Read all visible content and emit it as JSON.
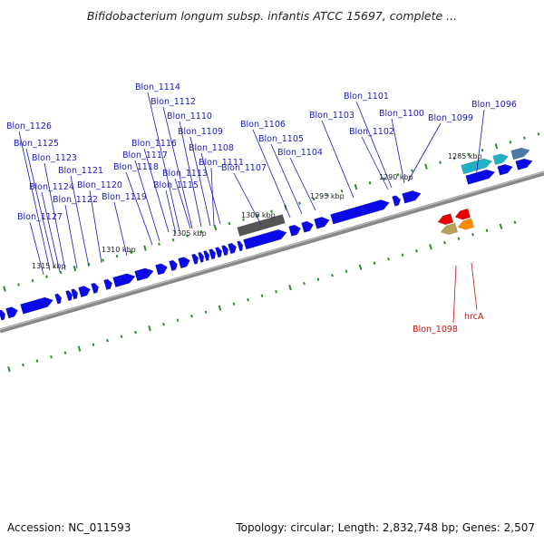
{
  "title": "Bifidobacterium longum subsp. infantis ATCC 15697, complete ...",
  "footer": {
    "accession": "Accession: NC_011593",
    "summary": "Topology: circular; Length: 2,832,748 bp; Genes: 2,507"
  },
  "colors": {
    "cds_forward": "#0a0ae6",
    "cds_reverse": "#0a0ae6",
    "rna_gray": "#555555",
    "label_blue": "#1a1ab8",
    "label_red": "#cc1111",
    "dots": "#2e8b2e",
    "backbone": "#888888",
    "teal": "#20b2c4",
    "steel": "#4a7ba7",
    "red": "#e60000",
    "khaki": "#b5a15a",
    "orange": "#ff8c00"
  },
  "ticks": [
    {
      "label": "1315 kbp"
    },
    {
      "label": "1310 kbp"
    },
    {
      "label": "1305 kbp"
    },
    {
      "label": "1300 kbp"
    },
    {
      "label": "1295 kbp"
    },
    {
      "label": "1290 kbp"
    },
    {
      "label": "1285 kbp"
    }
  ],
  "gene_labels": [
    {
      "name": "Blon_1114"
    },
    {
      "name": "Blon_1112"
    },
    {
      "name": "Blon_1110"
    },
    {
      "name": "Blon_1109"
    },
    {
      "name": "Blon_1116"
    },
    {
      "name": "Blon_1108"
    },
    {
      "name": "Blon_1117"
    },
    {
      "name": "Blon_1111"
    },
    {
      "name": "Blon_1118"
    },
    {
      "name": "Blon_1113"
    },
    {
      "name": "Blon_1115"
    },
    {
      "name": "Blon_1126"
    },
    {
      "name": "Blon_1125"
    },
    {
      "name": "Blon_1123"
    },
    {
      "name": "Blon_1121"
    },
    {
      "name": "Blon_1124"
    },
    {
      "name": "Blon_1120"
    },
    {
      "name": "Blon_1122"
    },
    {
      "name": "Blon_1119"
    },
    {
      "name": "Blon_1127"
    },
    {
      "name": "Blon_1106"
    },
    {
      "name": "Blon_1105"
    },
    {
      "name": "Blon_1104"
    },
    {
      "name": "Blon_1107"
    },
    {
      "name": "Blon_1103"
    },
    {
      "name": "Blon_1101"
    },
    {
      "name": "Blon_1100"
    },
    {
      "name": "Blon_1102"
    },
    {
      "name": "Blon_1099"
    },
    {
      "name": "Blon_1096"
    },
    {
      "name": "Blon_1098"
    },
    {
      "name": "hrcA"
    }
  ]
}
